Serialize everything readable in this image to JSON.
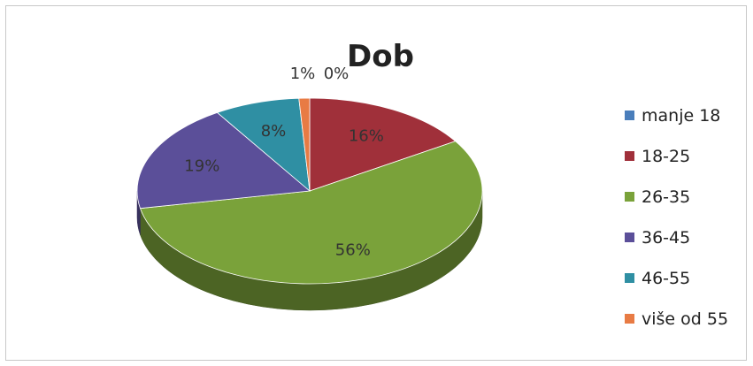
{
  "chart_data": {
    "type": "pie",
    "title": "Dob",
    "categories": [
      "manje 18",
      "18-25",
      "26-35",
      "36-45",
      "46-55",
      "više od 55"
    ],
    "values": [
      0,
      16,
      56,
      19,
      8,
      1
    ],
    "data_labels": [
      "0%",
      "16%",
      "56%",
      "19%",
      "8%",
      "1%"
    ],
    "colors": [
      "#4a7ebb",
      "#a0303a",
      "#7aa23a",
      "#5b4f99",
      "#2f8fa3",
      "#e87b44"
    ],
    "legend_position": "right",
    "style": "3d"
  }
}
